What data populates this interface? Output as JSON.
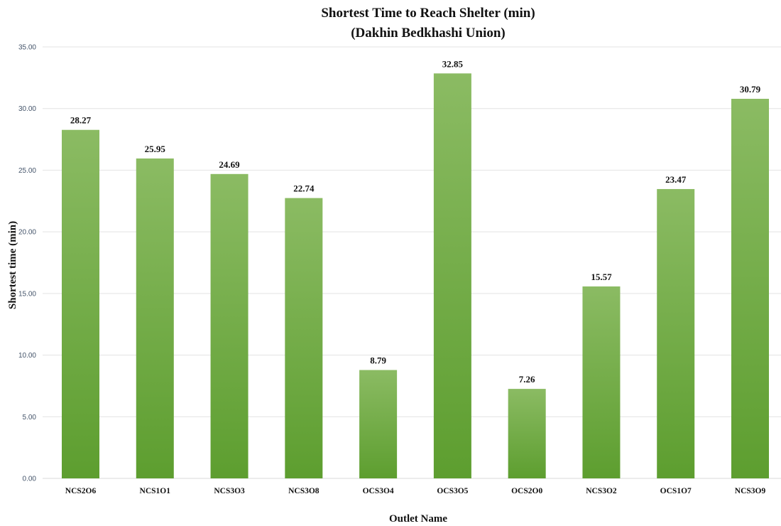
{
  "chart_data": {
    "type": "bar",
    "title": [
      "Shortest Time to Reach Shelter (min)",
      "(Dakhin Bedkhashi Union)"
    ],
    "xlabel": "Outlet Name",
    "ylabel": "Shortest time (min)",
    "categories": [
      "NCS2O6",
      "NCS1O1",
      "NCS3O3",
      "NCS3O8",
      "OCS3O4",
      "OCS3O5",
      "OCS2O0",
      "NCS3O2",
      "OCS1O7",
      "NCS3O9"
    ],
    "values": [
      28.27,
      25.95,
      24.69,
      22.74,
      8.79,
      32.85,
      7.26,
      15.57,
      23.47,
      30.79
    ],
    "data_labels": [
      "28.27",
      "25.95",
      "24.69",
      "22.74",
      "8.79",
      "32.85",
      "7.26",
      "15.57",
      "23.47",
      "30.79"
    ],
    "ylim": [
      0,
      35
    ],
    "yticks": [
      0,
      5,
      10,
      15,
      20,
      25,
      30,
      35
    ],
    "ytick_labels": [
      "0.00",
      "5.00",
      "10.00",
      "15.00",
      "20.00",
      "25.00",
      "30.00",
      "35.00"
    ],
    "grid": true,
    "legend": "none",
    "colors": {
      "bar_top": "#8bbb63",
      "bar_bottom": "#5d9e2f",
      "grid": "#e3e3e3",
      "ytick_text": "#44546a"
    }
  }
}
